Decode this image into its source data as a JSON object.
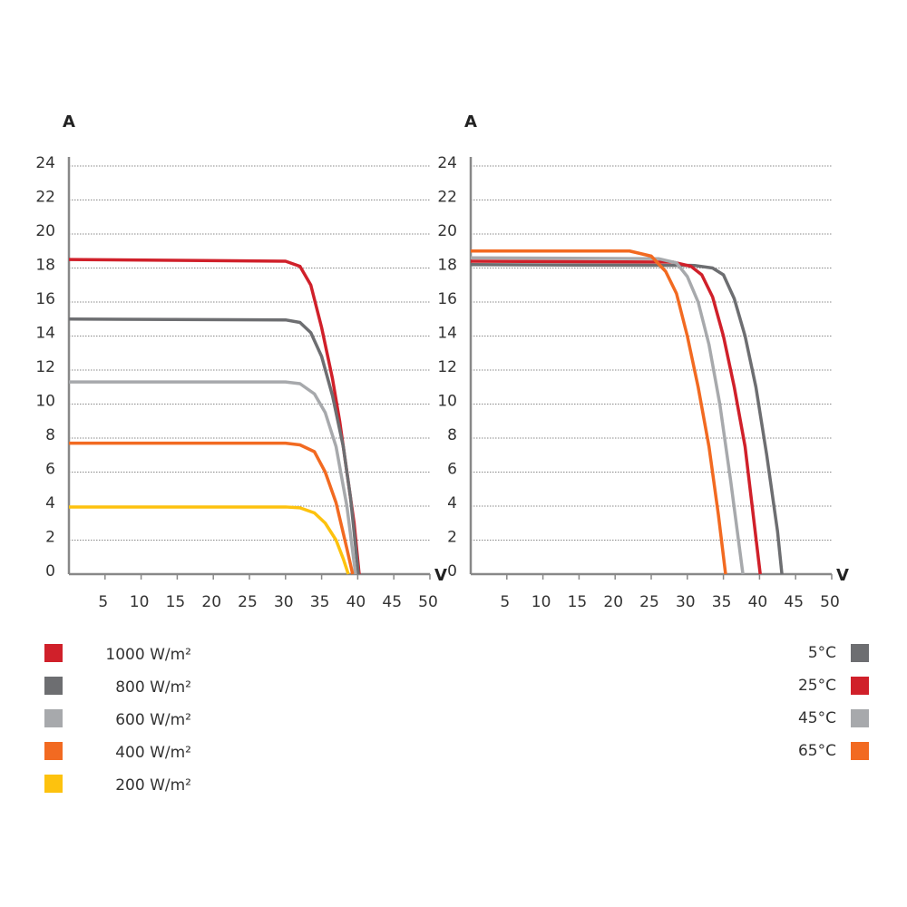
{
  "chart_data": [
    {
      "type": "line",
      "ylabel": "A",
      "xlabel": "V",
      "xlim": [
        0,
        50
      ],
      "xticks": [
        5,
        10,
        15,
        20,
        25,
        30,
        35,
        40,
        45,
        50
      ],
      "ylim": [
        0,
        24
      ],
      "yticks": [
        0,
        2,
        4,
        6,
        8,
        10,
        12,
        14,
        16,
        18,
        20,
        22,
        24
      ],
      "grid": true,
      "legend": "left",
      "series": [
        {
          "name": "1000 W/m²",
          "color": "#d0202a",
          "x": [
            0,
            30,
            32,
            33.5,
            35,
            36.5,
            37.5,
            38.5,
            39.5,
            40.2
          ],
          "values": [
            18.5,
            18.4,
            18.1,
            17.0,
            14.5,
            11.5,
            9.0,
            6.0,
            3.0,
            0
          ]
        },
        {
          "name": "800 W/m²",
          "color": "#6d6e71",
          "x": [
            0,
            30,
            32,
            33.5,
            35,
            36.5,
            38,
            39,
            40.1
          ],
          "values": [
            15.0,
            14.95,
            14.8,
            14.2,
            12.8,
            10.5,
            7.5,
            4.5,
            0
          ]
        },
        {
          "name": "600 W/m²",
          "color": "#a7a9ac",
          "x": [
            0,
            30,
            32,
            34,
            35.5,
            37,
            38.5,
            39.7
          ],
          "values": [
            11.3,
            11.3,
            11.2,
            10.6,
            9.5,
            7.5,
            4.0,
            0
          ]
        },
        {
          "name": "400 W/m²",
          "color": "#f26a21",
          "x": [
            0,
            30,
            32,
            34,
            35.5,
            37,
            38.5,
            39.3
          ],
          "values": [
            7.7,
            7.7,
            7.6,
            7.2,
            6.0,
            4.2,
            1.5,
            0
          ]
        },
        {
          "name": "200 W/m²",
          "color": "#fdc20e",
          "x": [
            0,
            30,
            32,
            34,
            35.5,
            37,
            38,
            38.7
          ],
          "values": [
            3.95,
            3.95,
            3.9,
            3.6,
            3.0,
            2.0,
            0.9,
            0
          ]
        }
      ]
    },
    {
      "type": "line",
      "ylabel": "A",
      "xlabel": "V",
      "xlim": [
        0,
        50
      ],
      "xticks": [
        5,
        10,
        15,
        20,
        25,
        30,
        35,
        40,
        45,
        50
      ],
      "ylim": [
        0,
        24
      ],
      "yticks": [
        0,
        2,
        4,
        6,
        8,
        10,
        12,
        14,
        16,
        18,
        20,
        22,
        24
      ],
      "grid": true,
      "legend": "right",
      "series": [
        {
          "name": "5°C",
          "color": "#6d6e71",
          "x": [
            0,
            31,
            33.5,
            35,
            36.5,
            38,
            39.5,
            41,
            42.5,
            43.1
          ],
          "values": [
            18.2,
            18.15,
            18.0,
            17.6,
            16.2,
            14.0,
            11.0,
            7.0,
            2.5,
            0
          ]
        },
        {
          "name": "25°C",
          "color": "#d0202a",
          "x": [
            0,
            28,
            30.5,
            32,
            33.5,
            35,
            36.5,
            38,
            40.1
          ],
          "values": [
            18.4,
            18.35,
            18.1,
            17.6,
            16.3,
            14.0,
            11.0,
            7.5,
            0
          ]
        },
        {
          "name": "45°C",
          "color": "#a7a9ac",
          "x": [
            0,
            26,
            28.5,
            30,
            31.5,
            33,
            34.5,
            36,
            37.7
          ],
          "values": [
            18.6,
            18.55,
            18.3,
            17.5,
            16.0,
            13.5,
            10.0,
            5.5,
            0
          ]
        },
        {
          "name": "65°C",
          "color": "#f26a21",
          "x": [
            0,
            22,
            25,
            27,
            28.5,
            30,
            31.5,
            33,
            34.3,
            35.3
          ],
          "values": [
            19.0,
            19.0,
            18.7,
            17.8,
            16.5,
            14.0,
            11.0,
            7.5,
            3.5,
            0
          ]
        }
      ]
    }
  ]
}
